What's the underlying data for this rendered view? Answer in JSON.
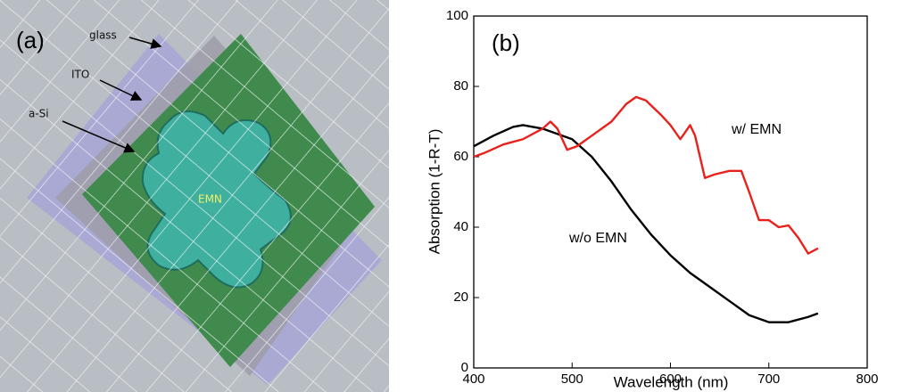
{
  "panel_a": {
    "label": "(a)",
    "annotations": [
      "glass",
      "ITO",
      "a-Si",
      "EMN"
    ]
  },
  "chart_data": {
    "type": "line",
    "panel_label": "(b)",
    "x_label": "Wavelength (nm)",
    "y_label": "Absorption  (1-R-T)",
    "annotations": [
      "w/ EMN",
      "w/o EMN"
    ],
    "xlim": [
      400,
      800
    ],
    "xticks": [
      400,
      500,
      600,
      700,
      800
    ],
    "ylim": [
      0,
      100
    ],
    "yticks": [
      0,
      20,
      40,
      60,
      80,
      100
    ],
    "series": [
      {
        "name": "w/o EMN",
        "color": "#000000",
        "x": [
          400,
          420,
          440,
          450,
          470,
          500,
          520,
          540,
          560,
          580,
          600,
          620,
          640,
          660,
          680,
          700,
          720,
          740,
          750
        ],
        "values": [
          63,
          66,
          68.5,
          69,
          68,
          65,
          60,
          53,
          45,
          38,
          32,
          27,
          23,
          19,
          15,
          13,
          13,
          14.5,
          15.5
        ]
      },
      {
        "name": "w/ EMN",
        "color": "#e8211c",
        "x": [
          400,
          410,
          430,
          450,
          470,
          478,
          485,
          495,
          505,
          520,
          540,
          555,
          565,
          575,
          590,
          600,
          610,
          620,
          625,
          635,
          645,
          660,
          672,
          680,
          690,
          700,
          710,
          720,
          730,
          740,
          750
        ],
        "values": [
          60,
          61,
          63.5,
          65,
          68,
          70,
          68,
          62,
          63,
          66,
          70,
          75,
          77,
          76,
          72,
          69,
          65,
          69,
          66,
          54,
          55,
          56,
          56,
          50,
          42,
          42,
          40,
          40.5,
          37,
          32.5,
          34
        ]
      }
    ]
  }
}
